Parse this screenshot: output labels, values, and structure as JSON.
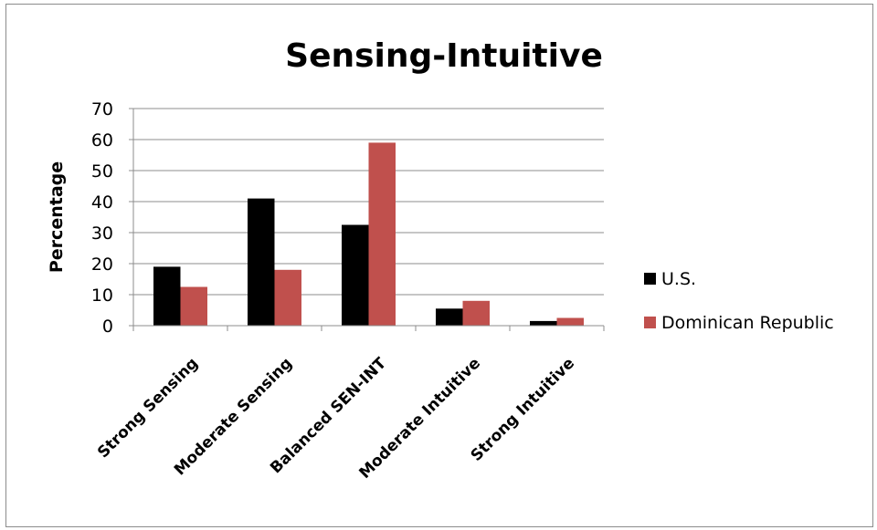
{
  "chart_data": {
    "type": "bar",
    "title": "Sensing-Intuitive",
    "xlabel": "",
    "ylabel": "Percentage",
    "categories": [
      "Strong Sensing",
      "Moderate Sensing",
      "Balanced SEN-INT",
      "Moderate Intuitive",
      "Strong Intuitive"
    ],
    "series": [
      {
        "name": "U.S.",
        "color": "#000000",
        "values": [
          19,
          41,
          32.5,
          5.5,
          1.5
        ]
      },
      {
        "name": "Dominican Republic",
        "color": "#c0504d",
        "values": [
          12.5,
          18,
          59,
          8,
          2.5
        ]
      }
    ],
    "ylim": [
      0,
      70
    ],
    "yticks": [
      0,
      10,
      20,
      30,
      40,
      50,
      60,
      70
    ],
    "grid": true,
    "legend_position": "right"
  }
}
